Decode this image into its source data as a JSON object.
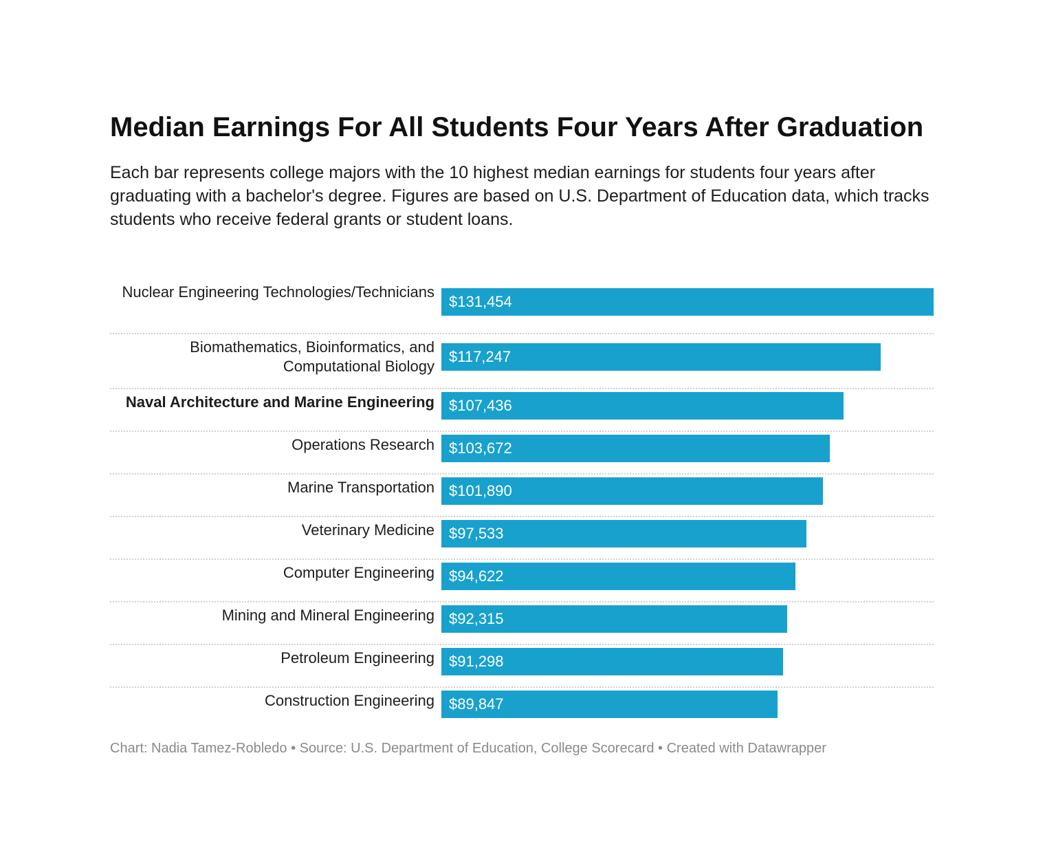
{
  "chart_data": {
    "type": "bar",
    "orientation": "horizontal",
    "title": "Median Earnings For All Students Four Years After Graduation",
    "subtitle": "Each bar represents college majors with the 10 highest median earnings for students four years after graduating with a bachelor's degree. Figures are based on U.S. Department of Education data, which tracks students who receive federal grants or student loans.",
    "categories": [
      "Nuclear Engineering Technologies/Technicians",
      "Biomathematics, Bioinformatics, and Computational Biology",
      "Naval Architecture and Marine Engineering",
      "Operations Research",
      "Marine Transportation",
      "Veterinary Medicine",
      "Computer Engineering",
      "Mining and Mineral Engineering",
      "Petroleum Engineering",
      "Construction Engineering"
    ],
    "values": [
      131454,
      117247,
      107436,
      103672,
      101890,
      97533,
      94622,
      92315,
      91298,
      89847
    ],
    "value_labels": [
      "$131,454",
      "$117,247",
      "$107,436",
      "$103,672",
      "$101,890",
      "$97,533",
      "$94,622",
      "$92,315",
      "$91,298",
      "$89,847"
    ],
    "highlighted_category": "Naval Architecture and Marine Engineering",
    "bar_color": "#18a1cd",
    "xlim": [
      0,
      131454
    ],
    "grid": false,
    "footer": "Chart: Nadia Tamez-Robledo • Source: U.S. Department of Education, College Scorecard • Created with Datawrapper"
  }
}
